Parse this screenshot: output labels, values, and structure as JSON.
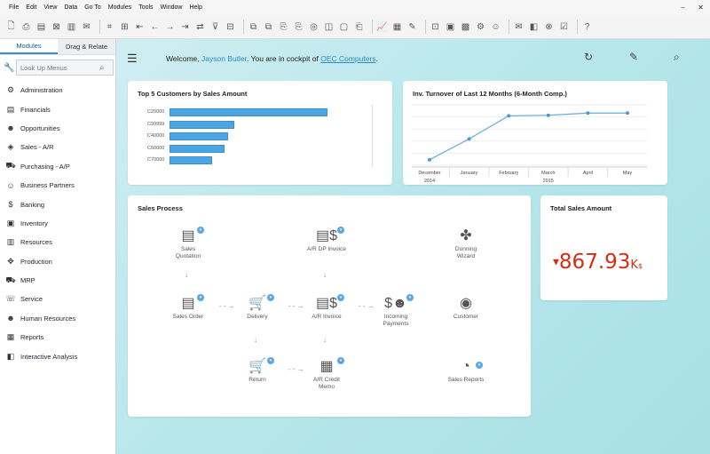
{
  "menubar": {
    "items": [
      "File",
      "Edit",
      "View",
      "Data",
      "Go To",
      "Modules",
      "Tools",
      "Window",
      "Help"
    ]
  },
  "sidebar": {
    "tabs": [
      "Modules",
      "Drag & Relate"
    ],
    "search_placeholder": "Look Up Menus",
    "items": [
      {
        "label": "Administration",
        "icon": "gear-icon"
      },
      {
        "label": "Financials",
        "icon": "document-icon"
      },
      {
        "label": "Opportunities",
        "icon": "people-icon"
      },
      {
        "label": "Sales - A/R",
        "icon": "tag-icon"
      },
      {
        "label": "Purchasing - A/P",
        "icon": "cart-icon"
      },
      {
        "label": "Business Partners",
        "icon": "partners-icon"
      },
      {
        "label": "Banking",
        "icon": "dollar-circle-icon"
      },
      {
        "label": "Inventory",
        "icon": "box-icon"
      },
      {
        "label": "Resources",
        "icon": "stack-icon"
      },
      {
        "label": "Production",
        "icon": "wrench-icon"
      },
      {
        "label": "MRP",
        "icon": "truck-icon"
      },
      {
        "label": "Service",
        "icon": "service-icon"
      },
      {
        "label": "Human Resources",
        "icon": "person-icon"
      },
      {
        "label": "Reports",
        "icon": "report-icon"
      },
      {
        "label": "Interactive Analysis",
        "icon": "analysis-icon"
      }
    ]
  },
  "header": {
    "welcome_prefix": "Welcome, ",
    "user": "Jayson Butler",
    "middle": ". You are in cockpit of ",
    "company": "OEC Computers",
    "suffix": "."
  },
  "customers_chart": {
    "title": "Top 5 Customers by Sales Amount",
    "chart_data": {
      "type": "bar",
      "orientation": "horizontal",
      "categories": [
        "C20000",
        "C99999",
        "C40000",
        "C60000",
        "C70000"
      ],
      "values": [
        100,
        41,
        37,
        35,
        27
      ],
      "grid": false
    }
  },
  "turnover_chart": {
    "title": "Inv. Turnover of Last 12 Months (6-Month Comp.)",
    "chart_data": {
      "type": "line",
      "categories": [
        "December",
        "January",
        "February",
        "March",
        "April",
        "May"
      ],
      "groups": [
        {
          "label": "2014",
          "span": 1
        },
        {
          "label": "2015",
          "span": 5
        }
      ],
      "values": [
        0.1,
        0.48,
        0.9,
        0.91,
        0.95,
        0.95
      ],
      "ylim": [
        0,
        1.1
      ],
      "grid": true
    }
  },
  "sales_process": {
    "title": "Sales Process",
    "nodes": {
      "sales_quotation": "Sales\nQuotation",
      "ar_dp_invoice": "A/R DP Invoice",
      "dunning_wizard": "Dunning\nWizard",
      "sales_order": "Sales Order",
      "delivery": "Delivery",
      "ar_invoice": "A/R Invoice",
      "incoming_payments": "Incoming\nPayments",
      "customer": "Customer",
      "return": "Return",
      "ar_credit_memo": "A/R Credit\nMemo",
      "sales_reports": "Sales Reports"
    }
  },
  "total_sales": {
    "title": "Total Sales Amount",
    "value": "867.93",
    "unit": "K",
    "currency": "$",
    "trend": "down",
    "color": "#d42e12"
  }
}
